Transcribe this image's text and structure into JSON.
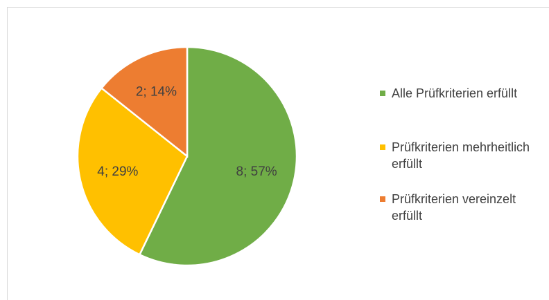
{
  "chart_data": {
    "type": "pie",
    "categories": [
      "Alle Prüfkriterien erfüllt",
      "Prüfkriterien mehrheitlich erfüllt",
      "Prüfkriterien vereinzelt erfüllt"
    ],
    "values": [
      8,
      4,
      2
    ],
    "value_labels": [
      "8; 57%",
      "4; 29%",
      "2; 14%"
    ],
    "colors": [
      "#70ad47",
      "#ffc000",
      "#ed7d31"
    ],
    "legend": "right"
  }
}
